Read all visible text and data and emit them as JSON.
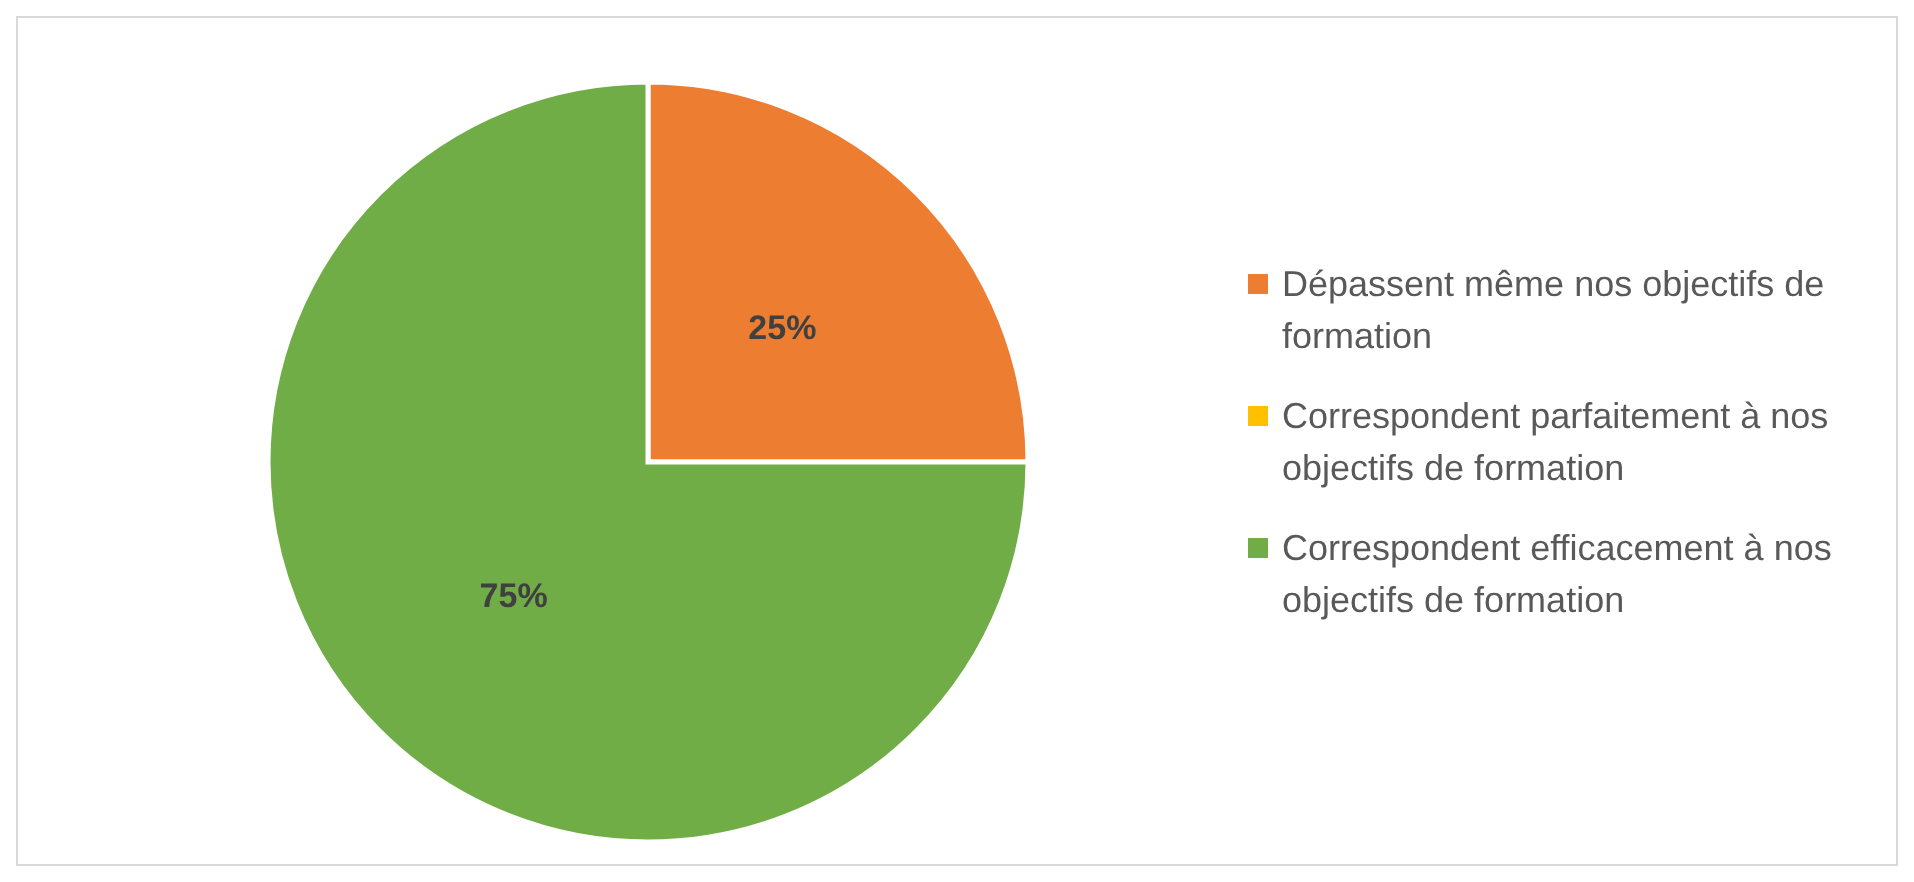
{
  "chart_data": {
    "type": "pie",
    "categories": [
      "Dépassent même nos objectifs de formation",
      "Correspondent parfaitement à nos objectifs de formation",
      "Correspondent efficacement à nos objectifs de formation"
    ],
    "values": [
      25,
      0,
      75
    ],
    "colors": [
      "#ed7d31",
      "#ffc000",
      "#70ad47"
    ],
    "value_labels": [
      "25%",
      null,
      "75%"
    ],
    "legend": "right"
  }
}
